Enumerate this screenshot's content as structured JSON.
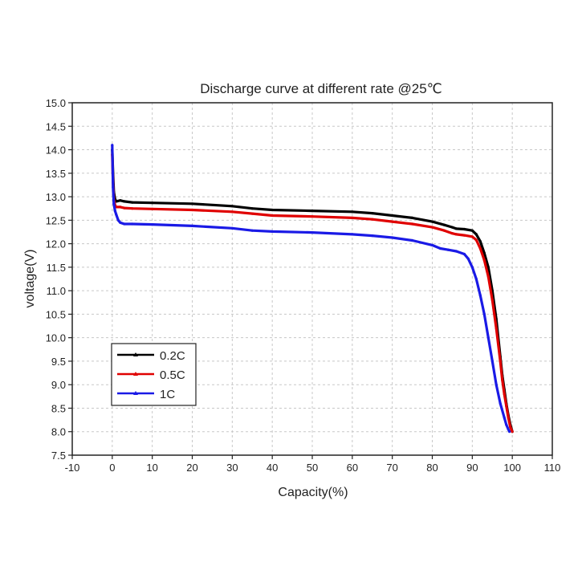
{
  "chart_data": {
    "type": "line",
    "title": "Discharge curve at different rate @25℃",
    "xlabel": "Capacity(%)",
    "ylabel": "voltage(V)",
    "xlim": [
      -10,
      110
    ],
    "ylim": [
      7.5,
      15.0
    ],
    "xticks": [
      -10,
      0,
      10,
      20,
      30,
      40,
      50,
      60,
      70,
      80,
      90,
      100,
      110
    ],
    "yticks": [
      "7.5",
      "8.0",
      "8.5",
      "9.0",
      "9.5",
      "10.0",
      "10.5",
      "11.0",
      "11.5",
      "12.0",
      "12.5",
      "13.0",
      "13.5",
      "14.0",
      "14.5",
      "15.0"
    ],
    "grid": true,
    "legend_position": "bottom-left",
    "series": [
      {
        "name": "0.2C",
        "color": "#000000",
        "x": [
          0,
          0.2,
          0.4,
          0.7,
          1,
          2,
          3,
          5,
          10,
          20,
          30,
          35,
          40,
          50,
          60,
          65,
          70,
          75,
          80,
          83,
          85,
          86,
          88,
          90,
          91,
          92,
          93,
          94,
          95,
          96,
          97,
          97.5,
          98,
          98.5,
          99,
          99.5,
          100
        ],
        "y": [
          14.0,
          13.5,
          13.1,
          12.95,
          12.9,
          12.92,
          12.9,
          12.88,
          12.87,
          12.85,
          12.8,
          12.75,
          12.72,
          12.7,
          12.68,
          12.65,
          12.6,
          12.55,
          12.47,
          12.4,
          12.35,
          12.32,
          12.31,
          12.28,
          12.2,
          12.05,
          11.8,
          11.5,
          11.0,
          10.4,
          9.6,
          9.2,
          8.9,
          8.6,
          8.35,
          8.15,
          8.0
        ]
      },
      {
        "name": "0.5C",
        "color": "#e00000",
        "x": [
          0,
          0.2,
          0.4,
          0.7,
          1,
          2,
          3,
          5,
          10,
          20,
          30,
          35,
          40,
          50,
          60,
          65,
          70,
          75,
          80,
          83,
          85,
          86,
          88,
          90,
          91,
          92,
          93,
          94,
          95,
          96,
          97,
          97.5,
          98,
          98.5,
          99,
          99.5,
          100
        ],
        "y": [
          13.9,
          13.3,
          12.95,
          12.82,
          12.78,
          12.78,
          12.76,
          12.75,
          12.74,
          12.72,
          12.68,
          12.64,
          12.6,
          12.58,
          12.55,
          12.52,
          12.47,
          12.42,
          12.35,
          12.28,
          12.22,
          12.2,
          12.18,
          12.15,
          12.08,
          11.9,
          11.65,
          11.3,
          10.8,
          10.2,
          9.5,
          9.1,
          8.8,
          8.55,
          8.3,
          8.1,
          8.0
        ]
      },
      {
        "name": "1C",
        "color": "#1a1ae6",
        "x": [
          0,
          0.2,
          0.4,
          0.7,
          1,
          1.5,
          2,
          3,
          5,
          10,
          20,
          30,
          35,
          40,
          50,
          60,
          65,
          70,
          75,
          80,
          82,
          84,
          86,
          88,
          89,
          90,
          91,
          92,
          93,
          94,
          95,
          96,
          97,
          98,
          98.5,
          99,
          99.3
        ],
        "y": [
          14.1,
          13.2,
          12.85,
          12.7,
          12.62,
          12.5,
          12.45,
          12.42,
          12.42,
          12.41,
          12.38,
          12.33,
          12.28,
          12.26,
          12.24,
          12.2,
          12.17,
          12.13,
          12.07,
          11.97,
          11.9,
          11.87,
          11.84,
          11.78,
          11.68,
          11.5,
          11.25,
          10.9,
          10.5,
          10.0,
          9.5,
          9.0,
          8.6,
          8.3,
          8.15,
          8.05,
          8.0
        ]
      }
    ]
  }
}
